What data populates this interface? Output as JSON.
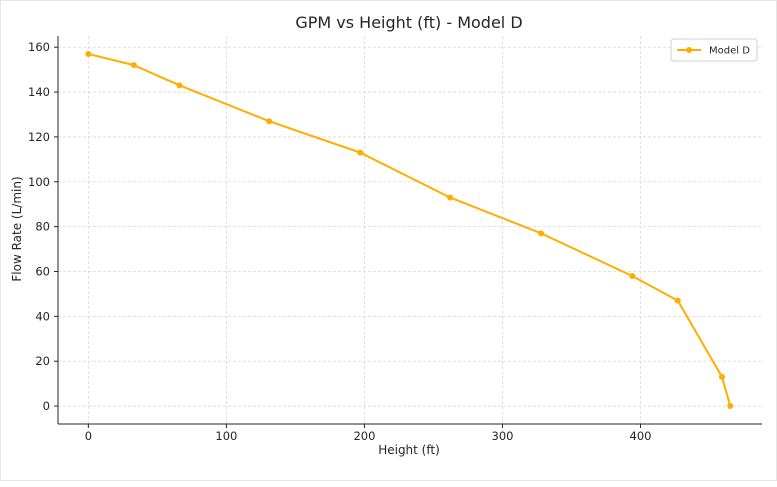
{
  "chart_data": {
    "type": "line",
    "title": "GPM vs Height (ft) - Model D",
    "xlabel": "Height (ft)",
    "ylabel": "Flow Rate (L/min)",
    "xlim": [
      -22,
      488
    ],
    "ylim": [
      -8,
      165
    ],
    "xticks": [
      0,
      100,
      200,
      300,
      400
    ],
    "yticks": [
      0,
      20,
      40,
      60,
      80,
      100,
      120,
      140,
      160
    ],
    "grid": true,
    "legend_position": "top-right",
    "series": [
      {
        "name": "Model D",
        "color": "#FFAD00",
        "x": [
          0,
          33,
          66,
          131,
          197,
          262,
          328,
          394,
          427,
          459,
          465
        ],
        "y": [
          157,
          152,
          143,
          127,
          113,
          93,
          77,
          58,
          47,
          13,
          0
        ]
      }
    ]
  }
}
